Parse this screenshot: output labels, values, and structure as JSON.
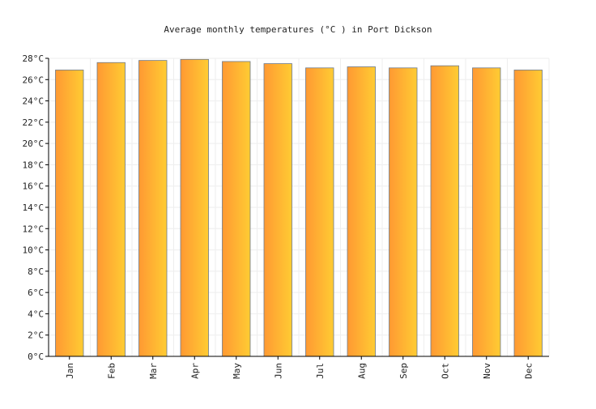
{
  "chart_data": {
    "type": "bar",
    "title": "Average monthly temperatures (°C ) in Port Dickson",
    "xlabel": "",
    "ylabel": "",
    "categories": [
      "Jan",
      "Feb",
      "Mar",
      "Apr",
      "May",
      "Jun",
      "Jul",
      "Aug",
      "Sep",
      "Oct",
      "Nov",
      "Dec"
    ],
    "values": [
      26.9,
      27.6,
      27.8,
      27.9,
      27.7,
      27.5,
      27.1,
      27.2,
      27.1,
      27.3,
      27.1,
      26.9
    ],
    "ylim": [
      0,
      28
    ],
    "yticks": [
      0,
      2,
      4,
      6,
      8,
      10,
      12,
      14,
      16,
      18,
      20,
      22,
      24,
      26,
      28
    ],
    "ytick_suffix": "°C",
    "grid": true,
    "legend": "none",
    "colors": {
      "bar_start": "#ff9933",
      "bar_end": "#ffcc33",
      "bar_stroke": "#6e7a8a",
      "grid": "#eeeeee",
      "axis": "#000000"
    }
  }
}
